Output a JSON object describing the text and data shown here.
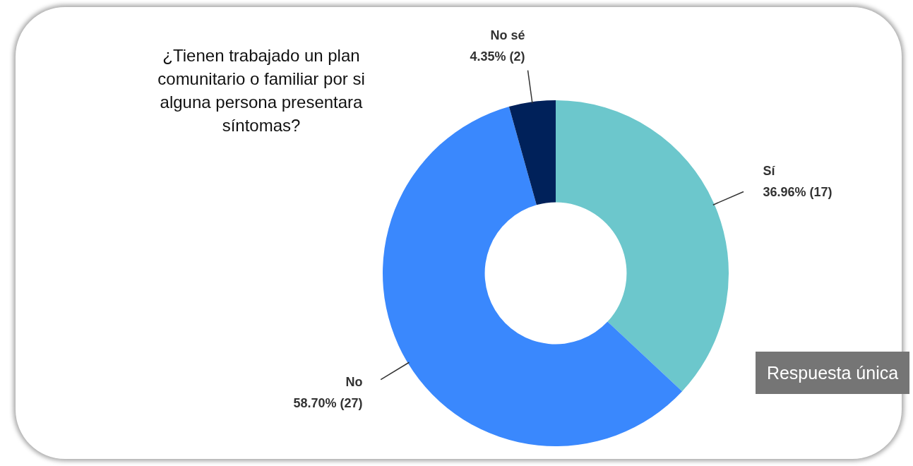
{
  "chart_data": {
    "type": "donut",
    "title": "¿Tienen trabajado un plan comunitario o familiar por si alguna persona presentara síntomas?",
    "categories": [
      "Sí",
      "No",
      "No sé"
    ],
    "values": [
      17,
      27,
      2
    ],
    "colors": [
      "#6cc7cc",
      "#3a88fd",
      "#00215a"
    ],
    "value_labels": [
      "36.96% (17)",
      "58.70% (27)",
      "4.35% (2)"
    ],
    "legend": false,
    "annotations": [
      "Respuesta única"
    ]
  }
}
